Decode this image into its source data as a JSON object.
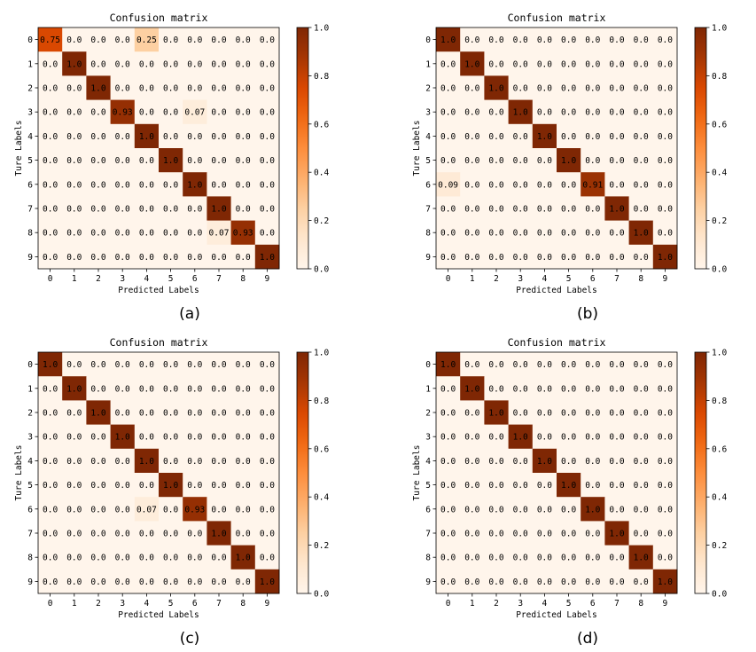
{
  "chart_data": [
    {
      "type": "heatmap",
      "panel_label": "(a)",
      "title": "Confusion matrix",
      "xlabel": "Predicted Labels",
      "ylabel": "Ture Labels",
      "x_categories": [
        "0",
        "1",
        "2",
        "3",
        "4",
        "5",
        "6",
        "7",
        "8",
        "9"
      ],
      "y_categories": [
        "0",
        "1",
        "2",
        "3",
        "4",
        "5",
        "6",
        "7",
        "8",
        "9"
      ],
      "values": [
        [
          0.75,
          0.0,
          0.0,
          0.0,
          0.25,
          0.0,
          0.0,
          0.0,
          0.0,
          0.0
        ],
        [
          0.0,
          1.0,
          0.0,
          0.0,
          0.0,
          0.0,
          0.0,
          0.0,
          0.0,
          0.0
        ],
        [
          0.0,
          0.0,
          1.0,
          0.0,
          0.0,
          0.0,
          0.0,
          0.0,
          0.0,
          0.0
        ],
        [
          0.0,
          0.0,
          0.0,
          0.93,
          0.0,
          0.0,
          0.07,
          0.0,
          0.0,
          0.0
        ],
        [
          0.0,
          0.0,
          0.0,
          0.0,
          1.0,
          0.0,
          0.0,
          0.0,
          0.0,
          0.0
        ],
        [
          0.0,
          0.0,
          0.0,
          0.0,
          0.0,
          1.0,
          0.0,
          0.0,
          0.0,
          0.0
        ],
        [
          0.0,
          0.0,
          0.0,
          0.0,
          0.0,
          0.0,
          1.0,
          0.0,
          0.0,
          0.0
        ],
        [
          0.0,
          0.0,
          0.0,
          0.0,
          0.0,
          0.0,
          0.0,
          1.0,
          0.0,
          0.0
        ],
        [
          0.0,
          0.0,
          0.0,
          0.0,
          0.0,
          0.0,
          0.0,
          0.07,
          0.93,
          0.0
        ],
        [
          0.0,
          0.0,
          0.0,
          0.0,
          0.0,
          0.0,
          0.0,
          0.0,
          0.0,
          1.0
        ]
      ],
      "colorbar_ticks": [
        "0.0",
        "0.2",
        "0.4",
        "0.6",
        "0.8",
        "1.0"
      ],
      "colorbar_range": [
        0,
        1
      ],
      "colormap": "Oranges"
    },
    {
      "type": "heatmap",
      "panel_label": "(b)",
      "title": "Confusion matrix",
      "xlabel": "Predicted Labels",
      "ylabel": "Ture Labels",
      "x_categories": [
        "0",
        "1",
        "2",
        "3",
        "4",
        "5",
        "6",
        "7",
        "8",
        "9"
      ],
      "y_categories": [
        "0",
        "1",
        "2",
        "3",
        "4",
        "5",
        "6",
        "7",
        "8",
        "9"
      ],
      "values": [
        [
          1.0,
          0.0,
          0.0,
          0.0,
          0.0,
          0.0,
          0.0,
          0.0,
          0.0,
          0.0
        ],
        [
          0.0,
          1.0,
          0.0,
          0.0,
          0.0,
          0.0,
          0.0,
          0.0,
          0.0,
          0.0
        ],
        [
          0.0,
          0.0,
          1.0,
          0.0,
          0.0,
          0.0,
          0.0,
          0.0,
          0.0,
          0.0
        ],
        [
          0.0,
          0.0,
          0.0,
          1.0,
          0.0,
          0.0,
          0.0,
          0.0,
          0.0,
          0.0
        ],
        [
          0.0,
          0.0,
          0.0,
          0.0,
          1.0,
          0.0,
          0.0,
          0.0,
          0.0,
          0.0
        ],
        [
          0.0,
          0.0,
          0.0,
          0.0,
          0.0,
          1.0,
          0.0,
          0.0,
          0.0,
          0.0
        ],
        [
          0.09,
          0.0,
          0.0,
          0.0,
          0.0,
          0.0,
          0.91,
          0.0,
          0.0,
          0.0
        ],
        [
          0.0,
          0.0,
          0.0,
          0.0,
          0.0,
          0.0,
          0.0,
          1.0,
          0.0,
          0.0
        ],
        [
          0.0,
          0.0,
          0.0,
          0.0,
          0.0,
          0.0,
          0.0,
          0.0,
          1.0,
          0.0
        ],
        [
          0.0,
          0.0,
          0.0,
          0.0,
          0.0,
          0.0,
          0.0,
          0.0,
          0.0,
          1.0
        ]
      ],
      "colorbar_ticks": [
        "0.0",
        "0.2",
        "0.4",
        "0.6",
        "0.8",
        "1.0"
      ],
      "colorbar_range": [
        0,
        1
      ],
      "colormap": "Oranges"
    },
    {
      "type": "heatmap",
      "panel_label": "(c)",
      "title": "Confusion matrix",
      "xlabel": "Predicted Labels",
      "ylabel": "Ture Labels",
      "x_categories": [
        "0",
        "1",
        "2",
        "3",
        "4",
        "5",
        "6",
        "7",
        "8",
        "9"
      ],
      "y_categories": [
        "0",
        "1",
        "2",
        "3",
        "4",
        "5",
        "6",
        "7",
        "8",
        "9"
      ],
      "values": [
        [
          1.0,
          0.0,
          0.0,
          0.0,
          0.0,
          0.0,
          0.0,
          0.0,
          0.0,
          0.0
        ],
        [
          0.0,
          1.0,
          0.0,
          0.0,
          0.0,
          0.0,
          0.0,
          0.0,
          0.0,
          0.0
        ],
        [
          0.0,
          0.0,
          1.0,
          0.0,
          0.0,
          0.0,
          0.0,
          0.0,
          0.0,
          0.0
        ],
        [
          0.0,
          0.0,
          0.0,
          1.0,
          0.0,
          0.0,
          0.0,
          0.0,
          0.0,
          0.0
        ],
        [
          0.0,
          0.0,
          0.0,
          0.0,
          1.0,
          0.0,
          0.0,
          0.0,
          0.0,
          0.0
        ],
        [
          0.0,
          0.0,
          0.0,
          0.0,
          0.0,
          1.0,
          0.0,
          0.0,
          0.0,
          0.0
        ],
        [
          0.0,
          0.0,
          0.0,
          0.0,
          0.07,
          0.0,
          0.93,
          0.0,
          0.0,
          0.0
        ],
        [
          0.0,
          0.0,
          0.0,
          0.0,
          0.0,
          0.0,
          0.0,
          1.0,
          0.0,
          0.0
        ],
        [
          0.0,
          0.0,
          0.0,
          0.0,
          0.0,
          0.0,
          0.0,
          0.0,
          1.0,
          0.0
        ],
        [
          0.0,
          0.0,
          0.0,
          0.0,
          0.0,
          0.0,
          0.0,
          0.0,
          0.0,
          1.0
        ]
      ],
      "colorbar_ticks": [
        "0.0",
        "0.2",
        "0.4",
        "0.6",
        "0.8",
        "1.0"
      ],
      "colorbar_range": [
        0,
        1
      ],
      "colormap": "Oranges"
    },
    {
      "type": "heatmap",
      "panel_label": "(d)",
      "title": "Confusion matrix",
      "xlabel": "Predicted Labels",
      "ylabel": "Ture Labels",
      "x_categories": [
        "0",
        "1",
        "2",
        "3",
        "4",
        "5",
        "6",
        "7",
        "8",
        "9"
      ],
      "y_categories": [
        "0",
        "1",
        "2",
        "3",
        "4",
        "5",
        "6",
        "7",
        "8",
        "9"
      ],
      "values": [
        [
          1.0,
          0.0,
          0.0,
          0.0,
          0.0,
          0.0,
          0.0,
          0.0,
          0.0,
          0.0
        ],
        [
          0.0,
          1.0,
          0.0,
          0.0,
          0.0,
          0.0,
          0.0,
          0.0,
          0.0,
          0.0
        ],
        [
          0.0,
          0.0,
          1.0,
          0.0,
          0.0,
          0.0,
          0.0,
          0.0,
          0.0,
          0.0
        ],
        [
          0.0,
          0.0,
          0.0,
          1.0,
          0.0,
          0.0,
          0.0,
          0.0,
          0.0,
          0.0
        ],
        [
          0.0,
          0.0,
          0.0,
          0.0,
          1.0,
          0.0,
          0.0,
          0.0,
          0.0,
          0.0
        ],
        [
          0.0,
          0.0,
          0.0,
          0.0,
          0.0,
          1.0,
          0.0,
          0.0,
          0.0,
          0.0
        ],
        [
          0.0,
          0.0,
          0.0,
          0.0,
          0.0,
          0.0,
          1.0,
          0.0,
          0.0,
          0.0
        ],
        [
          0.0,
          0.0,
          0.0,
          0.0,
          0.0,
          0.0,
          0.0,
          1.0,
          0.0,
          0.0
        ],
        [
          0.0,
          0.0,
          0.0,
          0.0,
          0.0,
          0.0,
          0.0,
          0.0,
          1.0,
          0.0
        ],
        [
          0.0,
          0.0,
          0.0,
          0.0,
          0.0,
          0.0,
          0.0,
          0.0,
          0.0,
          1.0
        ]
      ],
      "colorbar_ticks": [
        "0.0",
        "0.2",
        "0.4",
        "0.6",
        "0.8",
        "1.0"
      ],
      "colorbar_range": [
        0,
        1
      ],
      "colormap": "Oranges"
    }
  ]
}
